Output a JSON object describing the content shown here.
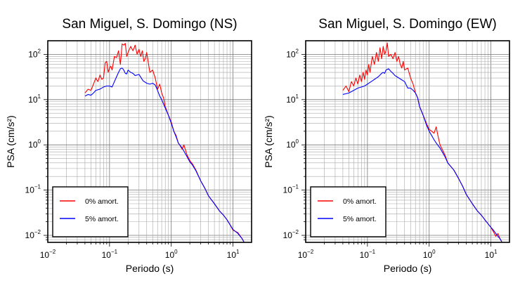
{
  "chart_data": [
    {
      "type": "line",
      "title": "San Miguel, S. Domingo (NS)",
      "xlabel": "Periodo (s)",
      "ylabel": "PSA (cm/s²)",
      "xscale": "log",
      "yscale": "log",
      "xlim": [
        0.01,
        20
      ],
      "ylim": [
        0.007,
        200
      ],
      "grid": true,
      "legend": "bottom-left",
      "x_ticks": [
        {
          "base": "10",
          "exp": "−2"
        },
        {
          "base": "10",
          "exp": "−1"
        },
        {
          "base": "10",
          "exp": "0"
        },
        {
          "base": "10",
          "exp": "1"
        }
      ],
      "y_ticks": [
        {
          "base": "10",
          "exp": "−2"
        },
        {
          "base": "10",
          "exp": "−1"
        },
        {
          "base": "10",
          "exp": "0"
        },
        {
          "base": "10",
          "exp": "1"
        },
        {
          "base": "10",
          "exp": "2"
        }
      ],
      "series": [
        {
          "name": "0% amort.",
          "color": "#ff0000",
          "x": [
            0.04,
            0.045,
            0.05,
            0.055,
            0.06,
            0.065,
            0.07,
            0.075,
            0.08,
            0.085,
            0.09,
            0.095,
            0.1,
            0.105,
            0.11,
            0.12,
            0.13,
            0.14,
            0.15,
            0.16,
            0.17,
            0.18,
            0.19,
            0.2,
            0.22,
            0.24,
            0.26,
            0.28,
            0.3,
            0.32,
            0.34,
            0.36,
            0.38,
            0.4,
            0.45,
            0.5,
            0.55,
            0.6,
            0.65,
            0.7,
            0.75,
            0.8,
            0.9,
            1.0,
            1.1,
            1.2,
            1.3,
            1.4,
            1.5,
            1.6,
            1.8,
            2.0,
            2.2,
            2.5,
            3.0,
            3.5,
            4.0,
            5.0,
            6.0,
            7.0,
            8.0,
            9.0,
            10.0,
            12.0,
            14.0,
            15.0
          ],
          "y": [
            14,
            17,
            16,
            22,
            30,
            25,
            35,
            28,
            30,
            65,
            70,
            40,
            50,
            55,
            45,
            90,
            85,
            120,
            60,
            170,
            160,
            175,
            90,
            110,
            150,
            120,
            160,
            100,
            130,
            90,
            120,
            70,
            80,
            110,
            40,
            45,
            30,
            17,
            22,
            14,
            11,
            7,
            4.5,
            3.2,
            2.0,
            1.6,
            1.1,
            0.95,
            0.8,
            1.0,
            0.6,
            0.45,
            0.38,
            0.28,
            0.16,
            0.11,
            0.075,
            0.05,
            0.035,
            0.028,
            0.022,
            0.017,
            0.013,
            0.0115,
            0.0085,
            0.0072
          ]
        },
        {
          "name": "5% amort.",
          "color": "#0000ff",
          "x": [
            0.04,
            0.045,
            0.05,
            0.055,
            0.06,
            0.07,
            0.08,
            0.09,
            0.1,
            0.11,
            0.12,
            0.13,
            0.14,
            0.15,
            0.16,
            0.17,
            0.18,
            0.19,
            0.2,
            0.22,
            0.24,
            0.26,
            0.28,
            0.3,
            0.35,
            0.4,
            0.45,
            0.5,
            0.55,
            0.6,
            0.65,
            0.7,
            0.8,
            0.9,
            1.0,
            1.1,
            1.2,
            1.3,
            1.5,
            1.8,
            2.0,
            2.2,
            2.5,
            3.0,
            3.5,
            4.0,
            5.0,
            6.0,
            7.0,
            8.0,
            9.0,
            10.0,
            12.0,
            14.0,
            15.0
          ],
          "y": [
            12,
            13,
            12.5,
            14,
            16,
            17,
            19,
            20,
            20,
            19,
            25,
            32,
            40,
            48,
            50,
            45,
            38,
            37,
            45,
            40,
            38,
            34,
            35,
            36,
            26,
            23,
            22,
            23,
            21,
            16,
            12,
            10,
            6.5,
            4.5,
            3.0,
            2.0,
            1.5,
            1.1,
            0.85,
            0.55,
            0.42,
            0.36,
            0.27,
            0.16,
            0.11,
            0.075,
            0.05,
            0.035,
            0.028,
            0.022,
            0.017,
            0.0135,
            0.011,
            0.0085,
            0.0072
          ]
        }
      ]
    },
    {
      "type": "line",
      "title": "San Miguel, S. Domingo (EW)",
      "xlabel": "Periodo (s)",
      "ylabel": "PSA (cm/s²)",
      "xscale": "log",
      "yscale": "log",
      "xlim": [
        0.01,
        20
      ],
      "ylim": [
        0.007,
        200
      ],
      "grid": true,
      "legend": "bottom-left",
      "x_ticks": [
        {
          "base": "10",
          "exp": "−2"
        },
        {
          "base": "10",
          "exp": "−1"
        },
        {
          "base": "10",
          "exp": "0"
        },
        {
          "base": "10",
          "exp": "1"
        }
      ],
      "y_ticks": [
        {
          "base": "10",
          "exp": "−2"
        },
        {
          "base": "10",
          "exp": "−1"
        },
        {
          "base": "10",
          "exp": "0"
        },
        {
          "base": "10",
          "exp": "1"
        },
        {
          "base": "10",
          "exp": "2"
        }
      ],
      "series": [
        {
          "name": "0% amort.",
          "color": "#ff0000",
          "x": [
            0.04,
            0.045,
            0.05,
            0.055,
            0.06,
            0.065,
            0.07,
            0.075,
            0.08,
            0.085,
            0.09,
            0.095,
            0.1,
            0.105,
            0.11,
            0.12,
            0.13,
            0.14,
            0.15,
            0.16,
            0.17,
            0.18,
            0.19,
            0.2,
            0.21,
            0.22,
            0.24,
            0.26,
            0.28,
            0.3,
            0.32,
            0.34,
            0.36,
            0.38,
            0.4,
            0.45,
            0.5,
            0.55,
            0.6,
            0.65,
            0.7,
            0.8,
            0.9,
            1.0,
            1.1,
            1.2,
            1.3,
            1.4,
            1.5,
            1.8,
            2.0,
            2.5,
            3.0,
            3.5,
            4.0,
            5.0,
            6.0,
            7.0,
            8.0,
            9.0,
            10.0,
            11.0,
            12.0,
            13.0,
            14.0,
            15.0
          ],
          "y": [
            16,
            20,
            15,
            25,
            20,
            30,
            22,
            35,
            25,
            40,
            28,
            45,
            35,
            60,
            40,
            90,
            60,
            110,
            70,
            140,
            80,
            150,
            100,
            120,
            180,
            90,
            100,
            80,
            110,
            70,
            90,
            60,
            50,
            70,
            45,
            50,
            30,
            22,
            14,
            11,
            7,
            4.5,
            3.0,
            2.2,
            2.0,
            1.8,
            2.5,
            1.5,
            1.0,
            0.6,
            0.4,
            0.28,
            0.18,
            0.12,
            0.08,
            0.05,
            0.035,
            0.028,
            0.022,
            0.018,
            0.015,
            0.012,
            0.0095,
            0.011,
            0.0085,
            0.0072
          ]
        },
        {
          "name": "5% amort.",
          "color": "#0000ff",
          "x": [
            0.04,
            0.045,
            0.05,
            0.06,
            0.07,
            0.08,
            0.09,
            0.1,
            0.11,
            0.12,
            0.13,
            0.14,
            0.15,
            0.16,
            0.17,
            0.18,
            0.19,
            0.2,
            0.22,
            0.24,
            0.26,
            0.28,
            0.3,
            0.35,
            0.4,
            0.45,
            0.5,
            0.55,
            0.6,
            0.65,
            0.7,
            0.8,
            0.9,
            1.0,
            1.1,
            1.2,
            1.3,
            1.5,
            1.8,
            2.0,
            2.5,
            3.0,
            3.5,
            4.0,
            5.0,
            6.0,
            7.0,
            8.0,
            9.0,
            10.0,
            11.0,
            12.0,
            13.0,
            14.0,
            15.0
          ],
          "y": [
            13,
            13.5,
            14,
            16,
            18,
            19,
            20,
            22,
            24,
            26,
            28,
            30,
            32,
            35,
            38,
            40,
            38,
            45,
            48,
            42,
            38,
            34,
            32,
            28,
            25,
            18,
            18,
            16,
            14,
            11,
            7,
            4.5,
            2.8,
            2.0,
            1.6,
            1.3,
            1.1,
            0.85,
            0.55,
            0.4,
            0.28,
            0.18,
            0.12,
            0.08,
            0.05,
            0.035,
            0.028,
            0.022,
            0.018,
            0.015,
            0.013,
            0.011,
            0.0095,
            0.0085,
            0.0072
          ]
        }
      ]
    }
  ]
}
